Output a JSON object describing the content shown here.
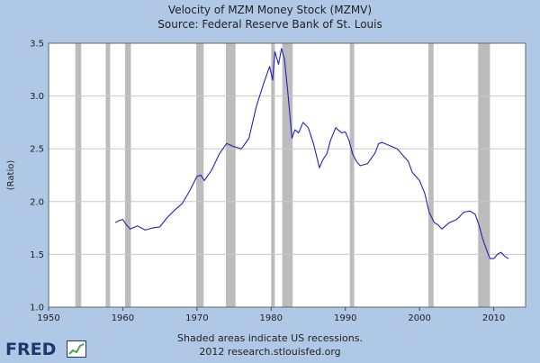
{
  "title_line1": "Velocity of MZM Money Stock (MZMV)",
  "title_line2": "Source: Federal Reserve Bank of St. Louis",
  "footer_line1": "Shaded areas indicate US recessions.",
  "footer_line2": "2012 research.stlouisfed.org",
  "logo_text": "FRED",
  "colors": {
    "background": "#afc8e6",
    "plot": "#ffffff",
    "line": "#2222bb",
    "recession": "#bcbcbc",
    "logo": "#1a3a6e"
  },
  "chart_data": {
    "type": "line",
    "title": "Velocity of MZM Money Stock (MZMV)",
    "ylabel": "(Ratio)",
    "xlabel": "",
    "xlim": [
      1950,
      2014.3
    ],
    "ylim": [
      1.0,
      3.5
    ],
    "x_ticks": [
      1950,
      1960,
      1970,
      1980,
      1990,
      2000,
      2010
    ],
    "y_ticks": [
      1.0,
      1.5,
      2.0,
      2.5,
      3.0,
      3.5
    ],
    "grid": "horizontal",
    "recessions": [
      [
        1953.6,
        1954.4
      ],
      [
        1957.7,
        1958.3
      ],
      [
        1960.3,
        1961.1
      ],
      [
        1969.9,
        1970.9
      ],
      [
        1973.9,
        1975.2
      ],
      [
        1980.0,
        1980.5
      ],
      [
        1981.5,
        1982.9
      ],
      [
        1990.6,
        1991.2
      ],
      [
        2001.2,
        2001.9
      ],
      [
        2007.9,
        2009.5
      ]
    ],
    "series": [
      {
        "x": [
          1959.0,
          1959.5,
          1960.0,
          1960.5,
          1961.0,
          1962.0,
          1963.0,
          1964.0,
          1965.0,
          1966.0,
          1967.0,
          1968.0,
          1969.0,
          1970.0,
          1970.5,
          1971.0,
          1972.0,
          1973.0,
          1974.0,
          1975.0,
          1976.0,
          1977.0,
          1978.0,
          1979.0,
          1979.8,
          1980.2,
          1980.5,
          1981.0,
          1981.4,
          1981.8,
          1982.3,
          1982.8,
          1983.2,
          1983.7,
          1984.3,
          1985.0,
          1985.7,
          1986.5,
          1987.0,
          1987.5,
          1988.0,
          1988.7,
          1989.5,
          1990.0,
          1990.5,
          1991.0,
          1991.5,
          1992.0,
          1993.0,
          1994.0,
          1994.5,
          1995.0,
          1996.0,
          1997.0,
          1998.0,
          1998.5,
          1999.0,
          2000.0,
          2000.7,
          2001.3,
          2002.0,
          2002.5,
          2003.0,
          2004.0,
          2005.0,
          2006.0,
          2006.8,
          2007.5,
          2008.0,
          2008.5,
          2009.0,
          2009.5,
          2010.0,
          2010.5,
          2011.0,
          2011.5,
          2012.0
        ],
        "y": [
          1.8,
          1.82,
          1.83,
          1.78,
          1.74,
          1.77,
          1.73,
          1.75,
          1.76,
          1.85,
          1.92,
          1.98,
          2.1,
          2.24,
          2.25,
          2.2,
          2.3,
          2.45,
          2.55,
          2.52,
          2.5,
          2.6,
          2.9,
          3.12,
          3.28,
          3.15,
          3.42,
          3.3,
          3.45,
          3.35,
          3.0,
          2.6,
          2.68,
          2.65,
          2.75,
          2.7,
          2.55,
          2.32,
          2.4,
          2.45,
          2.58,
          2.7,
          2.65,
          2.66,
          2.58,
          2.45,
          2.38,
          2.34,
          2.36,
          2.46,
          2.55,
          2.56,
          2.53,
          2.5,
          2.42,
          2.38,
          2.28,
          2.2,
          2.08,
          1.9,
          1.8,
          1.78,
          1.74,
          1.8,
          1.83,
          1.9,
          1.91,
          1.88,
          1.78,
          1.65,
          1.55,
          1.46,
          1.46,
          1.5,
          1.52,
          1.48,
          1.46
        ]
      }
    ]
  }
}
